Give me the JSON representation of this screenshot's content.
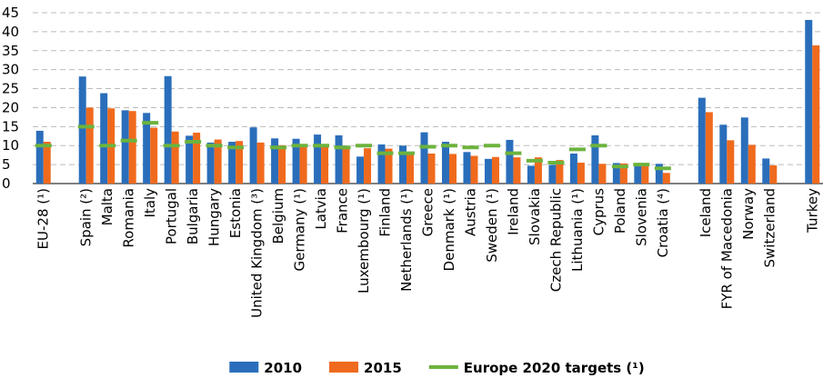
{
  "chart_data": {
    "type": "bar",
    "categories": [
      "EU-28 (¹)",
      null,
      "Spain (²)",
      "Malta",
      "Romania",
      "Italy",
      "Portugal",
      "Bulgaria",
      "Hungary",
      "Estonia",
      "United Kingdom (³)",
      "Belgium",
      "Germany (¹)",
      "Latvia",
      "France",
      "Luxembourg (¹)",
      "Finland",
      "Netherlands (¹)",
      "Greece",
      "Denmark (¹)",
      "Austria",
      "Sweden (¹)",
      "Ireland",
      "Slovakia",
      "Czech Republic",
      "Lithuania (¹)",
      "Cyprus",
      "Poland",
      "Slovenia",
      "Croatia (⁴)",
      null,
      "Iceland",
      "FYR of Macedonia",
      "Norway",
      "Switzerland",
      null,
      "Turkey"
    ],
    "series": [
      {
        "name": "2010",
        "color": "#2a6ebb",
        "values": [
          13.9,
          null,
          28.2,
          23.8,
          19.3,
          18.6,
          28.3,
          12.6,
          10.8,
          11.0,
          14.8,
          11.9,
          11.8,
          12.9,
          12.7,
          7.1,
          10.3,
          10.0,
          13.5,
          11.0,
          8.3,
          6.5,
          11.5,
          4.7,
          4.9,
          7.9,
          12.7,
          5.4,
          5.0,
          5.2,
          null,
          22.6,
          15.5,
          17.4,
          6.6,
          null,
          43.1
        ]
      },
      {
        "name": "2015",
        "color": "#f06a1d",
        "values": [
          11.0,
          null,
          20.0,
          19.8,
          19.1,
          14.7,
          13.7,
          13.4,
          11.6,
          11.2,
          10.8,
          10.1,
          10.1,
          9.9,
          9.2,
          9.3,
          9.2,
          8.2,
          7.9,
          7.8,
          7.3,
          7.0,
          6.9,
          6.9,
          6.2,
          5.5,
          5.2,
          5.3,
          5.0,
          2.8,
          null,
          18.8,
          11.4,
          10.2,
          4.8,
          null,
          36.4
        ]
      },
      {
        "name": "Europe 2020 targets (¹)",
        "color": "#6cb33e",
        "marker": "dash",
        "values": [
          10,
          null,
          15,
          10,
          11.3,
          16,
          10,
          11,
          10,
          9.5,
          null,
          9.5,
          10,
          10,
          9.5,
          10,
          8,
          8,
          9.7,
          10,
          9.5,
          10,
          8,
          6,
          5.5,
          9,
          10,
          4.5,
          5,
          4,
          null,
          null,
          null,
          null,
          null,
          null,
          null
        ]
      }
    ],
    "ylim": [
      0,
      45
    ],
    "yticks": [
      0,
      5,
      10,
      15,
      20,
      25,
      30,
      35,
      40,
      45
    ],
    "grid": true,
    "legend": "bottom"
  }
}
